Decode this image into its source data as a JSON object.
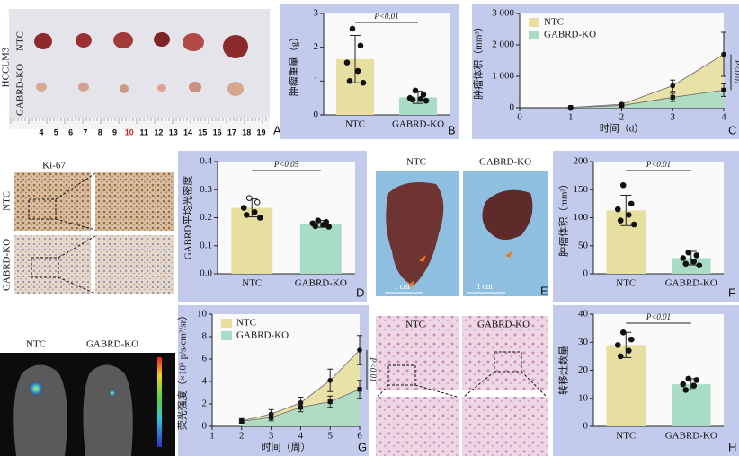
{
  "figure": {
    "A": {
      "letter": "A",
      "rows": [
        "NTC",
        "GABRD-KO"
      ],
      "cell_line": "HCCLM3",
      "ruler": [
        4,
        5,
        6,
        7,
        8,
        9,
        10,
        11,
        12,
        13,
        14,
        15,
        16,
        17,
        18,
        19
      ]
    },
    "D": {
      "stain": "Ki-67",
      "rows": [
        "NTC",
        "GABRD-KO"
      ]
    },
    "E": {
      "letter": "E",
      "cols": [
        "NTC",
        "GABRD-KO"
      ],
      "scale": [
        "1 cm",
        "1 cm"
      ]
    },
    "G": {
      "cols": [
        "NTC",
        "GABRD-KO"
      ]
    },
    "H": {
      "cols": [
        "NTC",
        "GABRD-KO"
      ]
    }
  },
  "chart_data": [
    {
      "type": "bar",
      "panel": "B",
      "ylabel": "肿瘤重量（g）",
      "categories": [
        "NTC",
        "GABRD-KO"
      ],
      "values": [
        1.65,
        0.52
      ],
      "errors": [
        0.7,
        0.18
      ],
      "points": [
        [
          2.55,
          2.05,
          1.55,
          1.3,
          1.0,
          0.95
        ],
        [
          0.72,
          0.6,
          0.5,
          0.47,
          0.45,
          0.42
        ]
      ],
      "colors": [
        "#e6dfa0",
        "#a9dcc4"
      ],
      "ylim": [
        0,
        3
      ],
      "yticks": [
        0,
        1,
        2,
        3
      ],
      "annotation": "P<0.01"
    },
    {
      "type": "line",
      "panel": "C",
      "ylabel": "肿瘤体积（mm³）",
      "xlabel": "时间（d）",
      "x": [
        1,
        2,
        3,
        4
      ],
      "xlim": [
        0,
        4
      ],
      "xticks": [
        0,
        1,
        2,
        3,
        4
      ],
      "ylim": [
        0,
        3000
      ],
      "yticks": [
        0,
        {
          "value": 1000,
          "label": "1 000"
        },
        {
          "value": 2000,
          "label": "2 000"
        },
        {
          "value": 3000,
          "label": "3 000"
        }
      ],
      "series": [
        {
          "name": "NTC",
          "color": "#e6dfa0",
          "values": [
            10,
            110,
            700,
            1700
          ],
          "errors": [
            5,
            40,
            180,
            700
          ]
        },
        {
          "name": "GABRD-KO",
          "color": "#a9dcc4",
          "values": [
            10,
            70,
            330,
            560
          ],
          "errors": [
            5,
            30,
            130,
            200
          ]
        }
      ],
      "legend": "upper left",
      "annotation": "P<0.01"
    },
    {
      "type": "bar",
      "panel": "D",
      "ylabel": "GABRD平均光密度",
      "categories": [
        "NTC",
        "GABRD-KO"
      ],
      "values": [
        0.235,
        0.178
      ],
      "errors": [
        0.032,
        0.012
      ],
      "points": [
        [
          0.27,
          0.255,
          0.235,
          0.22,
          0.21,
          0.2
        ],
        [
          0.19,
          0.185,
          0.18,
          0.175,
          0.17,
          0.168
        ]
      ],
      "colors": [
        "#e6dfa0",
        "#a9dcc4"
      ],
      "ylim": [
        0,
        0.4
      ],
      "yticks": [
        {
          "value": 0,
          "label": "0.0"
        },
        0.1,
        0.2,
        0.3,
        0.4
      ],
      "annotation": "P<0.05"
    },
    {
      "type": "bar",
      "panel": "F",
      "ylabel": "肿瘤体积（mm³）",
      "categories": [
        "NTC",
        "GABRD-KO"
      ],
      "values": [
        113,
        28
      ],
      "errors": [
        27,
        12
      ],
      "points": [
        [
          158,
          125,
          115,
          105,
          95,
          88
        ],
        [
          38,
          33,
          28,
          22,
          18,
          15
        ]
      ],
      "colors": [
        "#e6dfa0",
        "#a9dcc4"
      ],
      "ylim": [
        0,
        200
      ],
      "yticks": [
        0,
        50,
        100,
        150,
        200
      ],
      "annotation": "P<0.01"
    },
    {
      "type": "line",
      "panel": "G",
      "ylabel": "荧光强度（×10⁵ p/s/cm²/sr）",
      "xlabel": "时间（周）",
      "x": [
        2,
        3,
        4,
        5,
        6
      ],
      "xlim": [
        1,
        6
      ],
      "xticks": [
        1,
        2,
        3,
        4,
        5,
        6
      ],
      "ylim": [
        0,
        10
      ],
      "yticks": [
        0,
        2,
        4,
        6,
        8,
        10
      ],
      "series": [
        {
          "name": "NTC",
          "color": "#e6dfa0",
          "values": [
            0.5,
            1.1,
            2.1,
            4.1,
            6.8
          ],
          "errors": [
            0.2,
            0.4,
            0.5,
            1.0,
            1.3
          ]
        },
        {
          "name": "GABRD-KO",
          "color": "#a9dcc4",
          "values": [
            0.45,
            0.8,
            1.7,
            2.2,
            3.3
          ],
          "errors": [
            0.1,
            0.3,
            0.4,
            0.5,
            0.8
          ]
        }
      ],
      "legend": "upper left",
      "annotation": "P<0.01"
    },
    {
      "type": "bar",
      "panel": "H",
      "ylabel": "转移灶数量",
      "categories": [
        "NTC",
        "GABRD-KO"
      ],
      "values": [
        29,
        15
      ],
      "errors": [
        4.5,
        2
      ],
      "points": [
        [
          33.5,
          31,
          29,
          27,
          25
        ],
        [
          17,
          16.5,
          15,
          14.5,
          13
        ]
      ],
      "colors": [
        "#e6dfa0",
        "#a9dcc4"
      ],
      "ylim": [
        0,
        40
      ],
      "yticks": [
        0,
        10,
        20,
        30,
        40
      ],
      "annotation": "P<0.01"
    }
  ]
}
